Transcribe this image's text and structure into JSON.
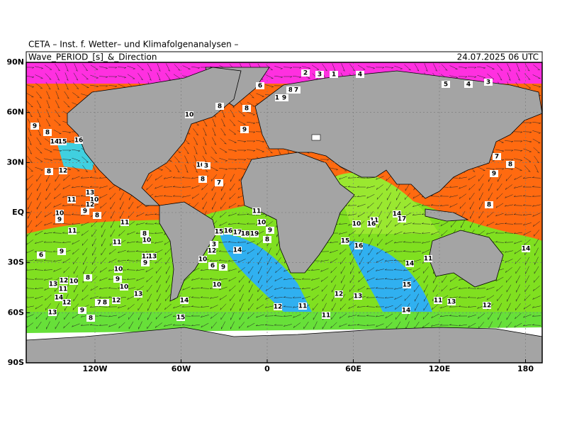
{
  "header": {
    "title": "CETA – Inst. f. Wetter– und Klimafolgenanalysen –",
    "subtitle": "Wave_PERIOD_[s]_&_Direction",
    "timestamp": "24.07.2025 06 UTC"
  },
  "map": {
    "yticks": [
      {
        "value": 90,
        "label": "90N"
      },
      {
        "value": 60,
        "label": "60N"
      },
      {
        "value": 30,
        "label": "30N"
      },
      {
        "value": 0,
        "label": "EQ"
      },
      {
        "value": -30,
        "label": "30S"
      },
      {
        "value": -60,
        "label": "60S"
      },
      {
        "value": -90,
        "label": "90S"
      }
    ],
    "xticks": [
      {
        "value": -120,
        "label": "120W"
      },
      {
        "value": -60,
        "label": "60W"
      },
      0,
      {
        "value": 60,
        "label": "60E"
      },
      {
        "value": 120,
        "label": "120E"
      },
      180
    ],
    "period_labels": [
      9,
      8,
      14,
      15,
      16,
      8,
      12,
      13,
      11,
      10,
      12,
      9,
      10,
      9,
      8,
      11,
      11,
      8,
      10,
      11,
      9,
      6,
      12,
      13,
      9,
      10,
      8,
      12,
      10,
      13,
      9,
      10,
      11,
      13,
      14,
      12,
      7,
      8,
      12,
      13,
      9,
      8,
      14,
      15,
      10,
      8,
      8,
      9,
      10,
      3,
      8,
      7,
      6,
      2,
      3,
      1,
      4,
      11,
      9,
      8,
      7,
      5,
      4,
      3,
      7,
      8,
      9,
      8,
      11,
      15,
      16,
      17,
      18,
      19,
      10,
      9,
      8,
      3,
      12,
      14,
      10,
      6,
      9,
      10,
      12,
      11,
      11,
      10,
      11,
      16,
      14,
      17,
      15,
      16,
      14,
      11,
      15,
      12,
      13,
      14,
      11,
      13,
      12,
      14
    ]
  }
}
